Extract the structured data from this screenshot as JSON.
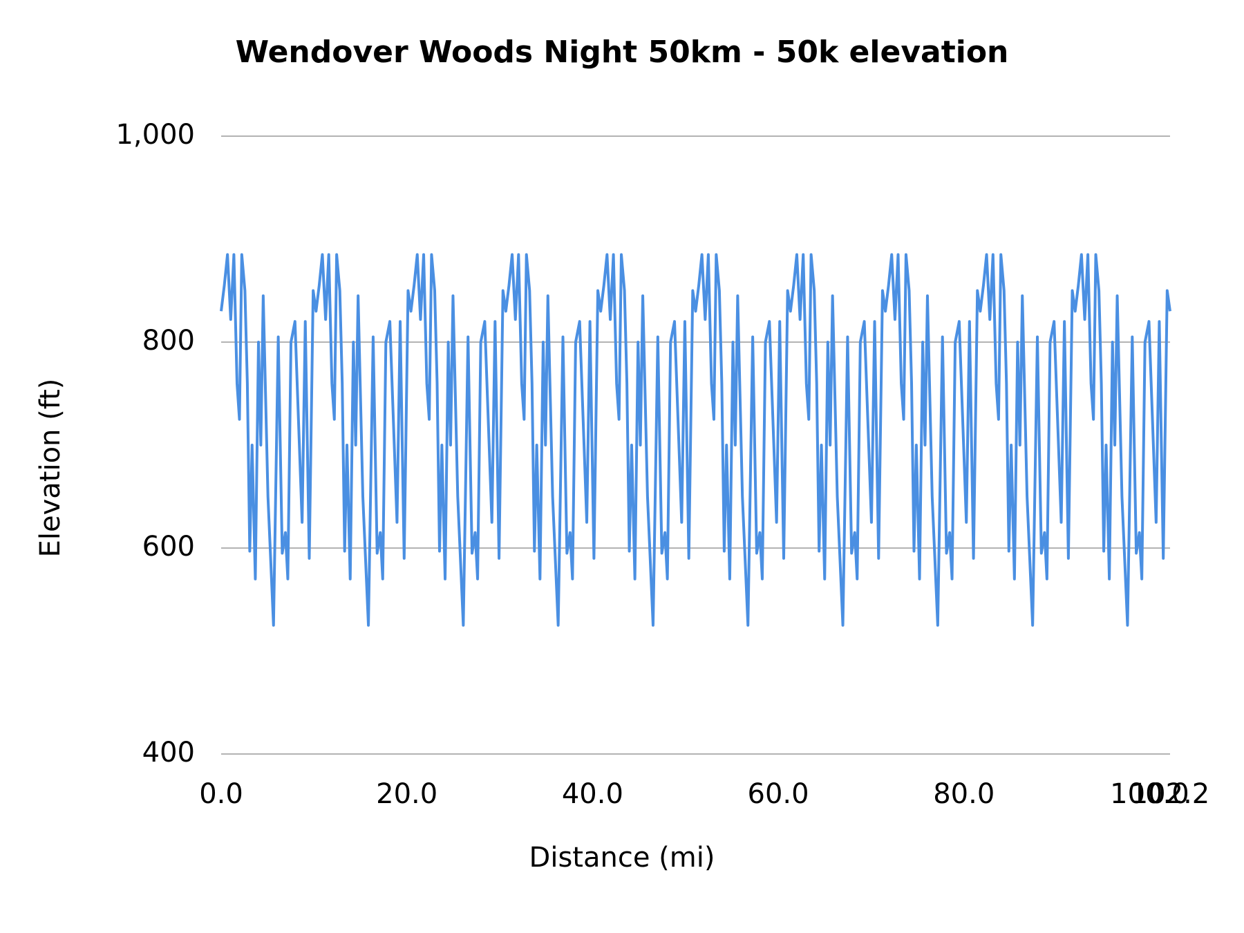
{
  "chart_data": {
    "type": "line",
    "title": "Wendover Woods Night 50km - 50k elevation",
    "x_label": "Distance (mi)",
    "y_label": "Elevation (ft)",
    "color": "#4a8fe2",
    "grid": true,
    "xlim": [
      0,
      102.2
    ],
    "ylim": [
      400,
      1000
    ],
    "xticks": [
      {
        "value": 0,
        "label": "0.0"
      },
      {
        "value": 20,
        "label": "20.0"
      },
      {
        "value": 40,
        "label": "40.0"
      },
      {
        "value": 60,
        "label": "60.0"
      },
      {
        "value": 80,
        "label": "80.0"
      },
      {
        "value": 100,
        "label": "100.0"
      },
      {
        "value": 102.2,
        "label": "102.2"
      }
    ],
    "yticks": [
      400,
      600,
      800,
      {
        "value": 1000,
        "label": "1,000"
      }
    ],
    "x": [
      0,
      0.34,
      0.68,
      1.03,
      1.37,
      1.71,
      1.97,
      2.22,
      2.56,
      2.82,
      3.08,
      3.33,
      3.68,
      4.02,
      4.27,
      4.53,
      5.04,
      5.64,
      6.15,
      6.58,
      6.92,
      7.18,
      7.52,
      7.95,
      8.72,
      9.06,
      9.49,
      9.91,
      10.22,
      10.56,
      10.9,
      11.25,
      11.59,
      11.93,
      12.19,
      12.44,
      12.78,
      13.04,
      13.3,
      13.55,
      13.9,
      14.24,
      14.49,
      14.75,
      15.26,
      15.86,
      16.37,
      16.8,
      17.14,
      17.4,
      17.74,
      18.17,
      18.94,
      19.28,
      19.71,
      20.13,
      20.44,
      20.78,
      21.12,
      21.47,
      21.81,
      22.15,
      22.41,
      22.66,
      23.0,
      23.26,
      23.52,
      23.77,
      24.12,
      24.46,
      24.71,
      24.97,
      25.48,
      26.08,
      26.59,
      27.02,
      27.36,
      27.62,
      27.96,
      28.39,
      29.16,
      29.5,
      29.93,
      30.35,
      30.66,
      31.0,
      31.34,
      31.69,
      32.03,
      32.37,
      32.63,
      32.88,
      33.22,
      33.48,
      33.74,
      33.99,
      34.34,
      34.68,
      34.93,
      35.19,
      35.7,
      36.3,
      36.81,
      37.24,
      37.58,
      37.84,
      38.18,
      38.61,
      39.38,
      39.72,
      40.15,
      40.57,
      40.88,
      41.22,
      41.56,
      41.91,
      42.25,
      42.59,
      42.85,
      43.1,
      43.44,
      43.7,
      43.96,
      44.21,
      44.56,
      44.9,
      45.15,
      45.41,
      45.92,
      46.52,
      47.03,
      47.46,
      47.8,
      48.06,
      48.4,
      48.83,
      49.6,
      49.94,
      50.37,
      50.79,
      51.1,
      51.44,
      51.78,
      52.13,
      52.47,
      52.81,
      53.07,
      53.32,
      53.66,
      53.92,
      54.18,
      54.43,
      54.78,
      55.12,
      55.37,
      55.63,
      56.14,
      56.74,
      57.25,
      57.68,
      58.02,
      58.28,
      58.62,
      59.05,
      59.82,
      60.16,
      60.59,
      61.01,
      61.32,
      61.66,
      62.0,
      62.35,
      62.69,
      63.03,
      63.29,
      63.54,
      63.88,
      64.14,
      64.4,
      64.65,
      65.0,
      65.34,
      65.59,
      65.85,
      66.36,
      66.96,
      67.47,
      67.9,
      68.24,
      68.5,
      68.84,
      69.27,
      70.04,
      70.38,
      70.81,
      71.23,
      71.54,
      71.88,
      72.22,
      72.57,
      72.91,
      73.25,
      73.51,
      73.76,
      74.1,
      74.36,
      74.62,
      74.87,
      75.22,
      75.56,
      75.81,
      76.07,
      76.58,
      77.18,
      77.69,
      78.12,
      78.46,
      78.72,
      79.06,
      79.49,
      80.26,
      80.6,
      81.03,
      81.45,
      81.76,
      82.1,
      82.44,
      82.79,
      83.13,
      83.47,
      83.73,
      83.98,
      84.32,
      84.58,
      84.84,
      85.09,
      85.44,
      85.78,
      86.03,
      86.29,
      86.8,
      87.4,
      87.91,
      88.34,
      88.68,
      88.94,
      89.28,
      89.71,
      90.48,
      90.82,
      91.25,
      91.67,
      91.98,
      92.32,
      92.66,
      93.01,
      93.35,
      93.69,
      93.95,
      94.2,
      94.54,
      94.8,
      95.06,
      95.31,
      95.66,
      96.0,
      96.25,
      96.51,
      97.02,
      97.62,
      98.13,
      98.56,
      98.9,
      99.16,
      99.5,
      99.93,
      100.7,
      101.04,
      101.47,
      101.89,
      102.2
    ],
    "values": [
      830,
      855,
      885,
      822,
      885,
      760,
      725,
      885,
      850,
      760,
      597,
      700,
      570,
      800,
      700,
      845,
      650,
      525,
      805,
      595,
      615,
      570,
      800,
      820,
      625,
      820,
      590,
      850,
      830,
      855,
      885,
      822,
      885,
      760,
      725,
      885,
      850,
      760,
      597,
      700,
      570,
      800,
      700,
      845,
      650,
      525,
      805,
      595,
      615,
      570,
      800,
      820,
      625,
      820,
      590,
      850,
      830,
      855,
      885,
      822,
      885,
      760,
      725,
      885,
      850,
      760,
      597,
      700,
      570,
      800,
      700,
      845,
      650,
      525,
      805,
      595,
      615,
      570,
      800,
      820,
      625,
      820,
      590,
      850,
      830,
      855,
      885,
      822,
      885,
      760,
      725,
      885,
      850,
      760,
      597,
      700,
      570,
      800,
      700,
      845,
      650,
      525,
      805,
      595,
      615,
      570,
      800,
      820,
      625,
      820,
      590,
      850,
      830,
      855,
      885,
      822,
      885,
      760,
      725,
      885,
      850,
      760,
      597,
      700,
      570,
      800,
      700,
      845,
      650,
      525,
      805,
      595,
      615,
      570,
      800,
      820,
      625,
      820,
      590,
      850,
      830,
      855,
      885,
      822,
      885,
      760,
      725,
      885,
      850,
      760,
      597,
      700,
      570,
      800,
      700,
      845,
      650,
      525,
      805,
      595,
      615,
      570,
      800,
      820,
      625,
      820,
      590,
      850,
      830,
      855,
      885,
      822,
      885,
      760,
      725,
      885,
      850,
      760,
      597,
      700,
      570,
      800,
      700,
      845,
      650,
      525,
      805,
      595,
      615,
      570,
      800,
      820,
      625,
      820,
      590,
      850,
      830,
      855,
      885,
      822,
      885,
      760,
      725,
      885,
      850,
      760,
      597,
      700,
      570,
      800,
      700,
      845,
      650,
      525,
      805,
      595,
      615,
      570,
      800,
      820,
      625,
      820,
      590,
      850,
      830,
      855,
      885,
      822,
      885,
      760,
      725,
      885,
      850,
      760,
      597,
      700,
      570,
      800,
      700,
      845,
      650,
      525,
      805,
      595,
      615,
      570,
      800,
      820,
      625,
      820,
      590,
      850,
      830,
      855,
      885,
      822,
      885,
      760,
      725,
      885,
      850,
      760,
      597,
      700,
      570,
      800,
      700,
      845,
      650,
      525,
      805,
      595,
      615,
      570,
      800,
      820,
      625,
      820,
      590,
      850,
      830
    ]
  }
}
